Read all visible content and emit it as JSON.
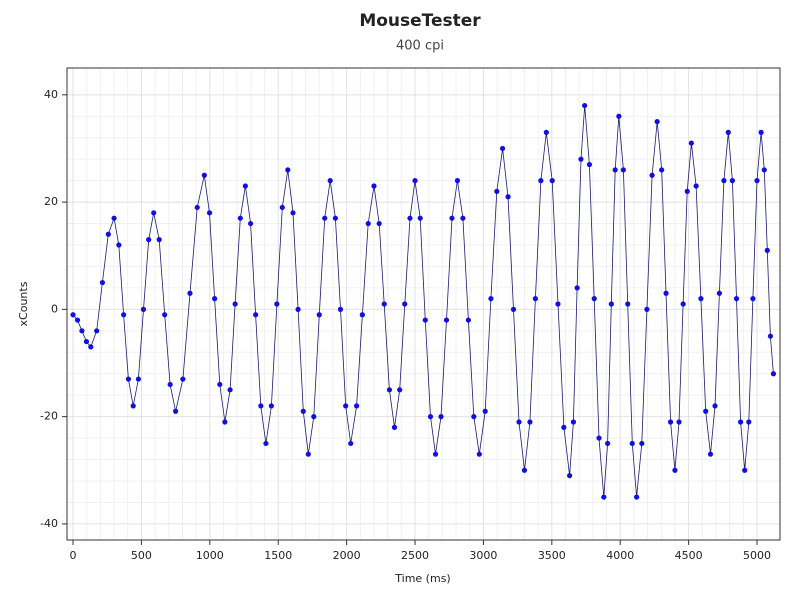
{
  "chart_data": {
    "type": "scatter",
    "title": "MouseTester",
    "subtitle": "400 cpi",
    "x_label": "Time (ms)",
    "y_label": "xCounts",
    "xlim": [
      -44,
      5168
    ],
    "ylim": [
      -43,
      45
    ],
    "xticks": [
      0,
      500,
      1000,
      1500,
      2000,
      2500,
      3000,
      3500,
      4000,
      4500,
      5000
    ],
    "yticks": [
      -40,
      -20,
      0,
      20,
      40
    ],
    "grid": true,
    "minor_grid": true,
    "fit_line": true,
    "line_color": "#1a1a6e",
    "series": [
      {
        "color": "#1010e0",
        "x": [
          0,
          33,
          65,
          98,
          130,
          173,
          215,
          258,
          300,
          335,
          370,
          405,
          440,
          478,
          515,
          553,
          590,
          630,
          670,
          710,
          750,
          803,
          855,
          908,
          960,
          998,
          1035,
          1073,
          1110,
          1148,
          1185,
          1223,
          1260,
          1298,
          1335,
          1373,
          1410,
          1450,
          1490,
          1530,
          1570,
          1608,
          1645,
          1683,
          1720,
          1760,
          1800,
          1840,
          1880,
          1918,
          1955,
          1993,
          2030,
          2073,
          2115,
          2158,
          2200,
          2238,
          2275,
          2313,
          2350,
          2388,
          2425,
          2463,
          2500,
          2538,
          2575,
          2613,
          2650,
          2690,
          2730,
          2770,
          2810,
          2850,
          2890,
          2930,
          2970,
          3013,
          3055,
          3098,
          3140,
          3180,
          3220,
          3260,
          3300,
          3340,
          3380,
          3420,
          3460,
          3503,
          3545,
          3588,
          3630,
          3658,
          3685,
          3713,
          3740,
          3775,
          3810,
          3845,
          3880,
          3908,
          3935,
          3963,
          3990,
          4023,
          4055,
          4088,
          4120,
          4158,
          4195,
          4233,
          4270,
          4303,
          4335,
          4368,
          4400,
          4430,
          4460,
          4490,
          4520,
          4555,
          4590,
          4625,
          4660,
          4693,
          4725,
          4758,
          4790,
          4820,
          4850,
          4880,
          4910,
          4940,
          4970,
          5000,
          5030,
          5053,
          5075,
          5098,
          5120
        ],
        "values": [
          -1,
          -2,
          -4,
          -6,
          -7,
          -4,
          5,
          14,
          17,
          12,
          -1,
          -13,
          -18,
          -13,
          0,
          13,
          18,
          13,
          -1,
          -14,
          -19,
          -13,
          3,
          19,
          25,
          18,
          2,
          -14,
          -21,
          -15,
          1,
          17,
          23,
          16,
          -1,
          -18,
          -25,
          -18,
          1,
          19,
          26,
          18,
          0,
          -19,
          -27,
          -20,
          -1,
          17,
          24,
          17,
          0,
          -18,
          -25,
          -18,
          -1,
          16,
          23,
          16,
          1,
          -15,
          -22,
          -15,
          1,
          17,
          24,
          17,
          -2,
          -20,
          -27,
          -20,
          -2,
          17,
          24,
          17,
          -2,
          -20,
          -27,
          -19,
          2,
          22,
          30,
          21,
          0,
          -21,
          -30,
          -21,
          2,
          24,
          33,
          24,
          1,
          -22,
          -31,
          -21,
          4,
          28,
          38,
          27,
          2,
          -24,
          -35,
          -25,
          1,
          26,
          36,
          26,
          1,
          -25,
          -35,
          -25,
          0,
          25,
          35,
          26,
          3,
          -21,
          -30,
          -21,
          1,
          22,
          31,
          23,
          2,
          -19,
          -27,
          -18,
          3,
          24,
          33,
          24,
          2,
          -21,
          -30,
          -21,
          2,
          24,
          33,
          26,
          11,
          -5,
          -12
        ]
      }
    ]
  }
}
